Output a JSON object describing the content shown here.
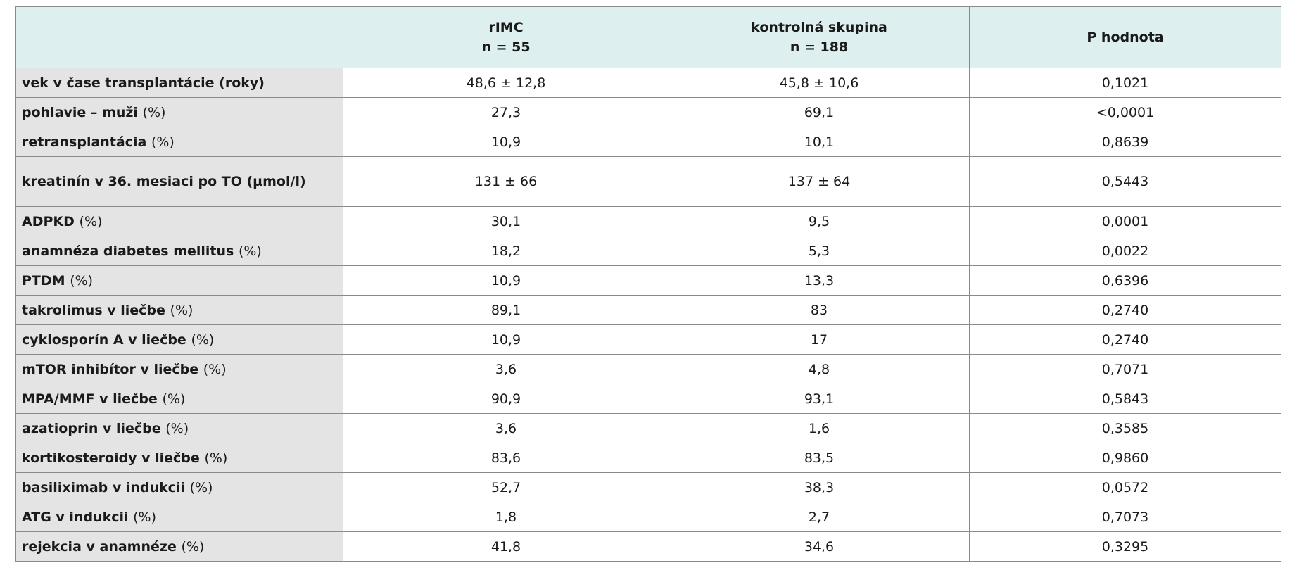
{
  "table": {
    "columns": [
      {
        "lines": [
          "rIMC",
          "n = 55"
        ]
      },
      {
        "lines": [
          "kontrolná skupina",
          "n = 188"
        ]
      },
      {
        "lines": [
          "P hodnota"
        ]
      }
    ],
    "rows": [
      {
        "label": "vek v čase transplantácie (roky)",
        "cells": [
          "48,6 ± 12,8",
          "45,8 ± 10,6",
          "0,1021"
        ]
      },
      {
        "label": "pohlavie – muži",
        "unit": "(%)",
        "cells": [
          "27,3",
          "69,1",
          "<0,0001"
        ]
      },
      {
        "label": "retransplantácia",
        "unit": "(%)",
        "cells": [
          "10,9",
          "10,1",
          "0,8639"
        ]
      },
      {
        "label": "kreatinín v 36. mesiaci po TO (µmol/l)",
        "cells": [
          "131 ± 66",
          "137 ± 64",
          "0,5443"
        ]
      },
      {
        "label": "ADPKD",
        "unit": "(%)",
        "cells": [
          "30,1",
          "9,5",
          "0,0001"
        ]
      },
      {
        "label": "anamnéza diabetes mellitus",
        "unit": "(%)",
        "cells": [
          "18,2",
          "5,3",
          "0,0022"
        ]
      },
      {
        "label": "PTDM",
        "unit": "(%)",
        "cells": [
          "10,9",
          "13,3",
          "0,6396"
        ]
      },
      {
        "label": "takrolimus v liečbe",
        "unit": "(%)",
        "cells": [
          "89,1",
          "83",
          "0,2740"
        ]
      },
      {
        "label": "cyklosporín A v liečbe",
        "unit": "(%)",
        "cells": [
          "10,9",
          "17",
          "0,2740"
        ]
      },
      {
        "label": "mTOR inhibítor v liečbe",
        "unit": "(%)",
        "cells": [
          "3,6",
          "4,8",
          "0,7071"
        ]
      },
      {
        "label": "MPA/MMF v liečbe",
        "unit": "(%)",
        "cells": [
          "90,9",
          "93,1",
          "0,5843"
        ]
      },
      {
        "label": "azatioprin v liečbe",
        "unit": "(%)",
        "cells": [
          "3,6",
          "1,6",
          "0,3585"
        ]
      },
      {
        "label": "kortikosteroidy v liečbe",
        "unit": "(%)",
        "cells": [
          "83,6",
          "83,5",
          "0,9860"
        ]
      },
      {
        "label": "basiliximab v indukcii",
        "unit": "(%)",
        "cells": [
          "52,7",
          "38,3",
          "0,0572"
        ]
      },
      {
        "label": "ATG v indukcii",
        "unit": "(%)",
        "cells": [
          "1,8",
          "2,7",
          "0,7073"
        ]
      },
      {
        "label": "rejekcia v anamnéze",
        "unit": "(%)",
        "cells": [
          "41,8",
          "34,6",
          "0,3295"
        ]
      }
    ]
  }
}
